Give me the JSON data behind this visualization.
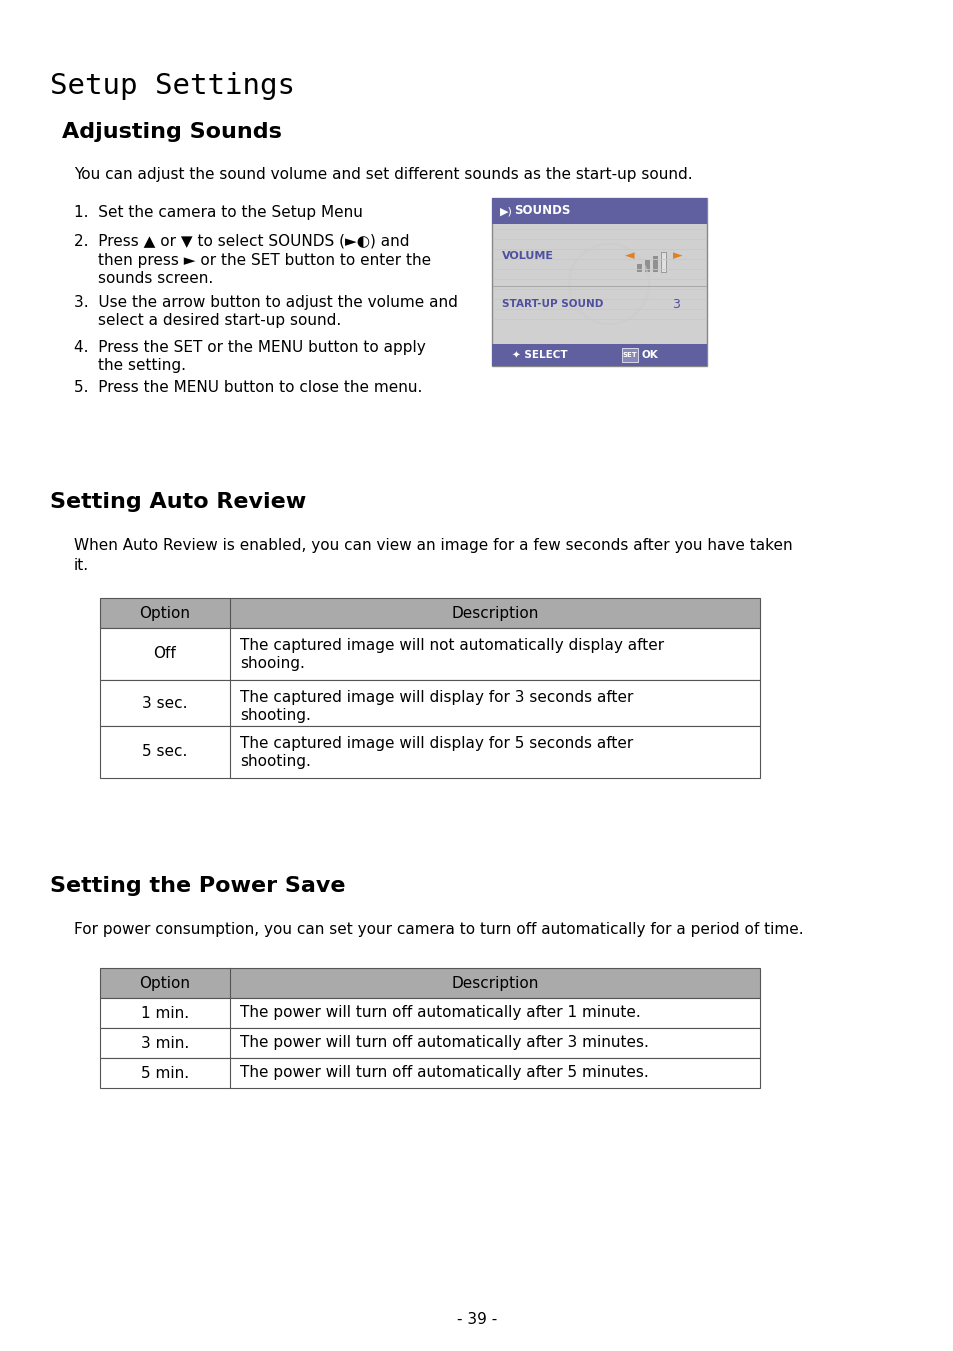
{
  "page_title": "Setup Settings",
  "section1_title": "Adjusting Sounds",
  "section1_intro": "You can adjust the sound volume and set different sounds as the start-up sound.",
  "section1_steps": [
    [
      "Set the camera to the Setup Menu"
    ],
    [
      "Press ▲ or ▼ to select SOUNDS (►◐) and",
      "then press ► or the SET button to enter the",
      "sounds screen."
    ],
    [
      "Use the arrow button to adjust the volume and",
      "select a desired start-up sound."
    ],
    [
      "Press the SET or the MENU button to apply",
      "the setting."
    ],
    [
      "Press the MENU button to close the menu."
    ]
  ],
  "section2_title": "Setting Auto Review",
  "section2_intro_line1": "When Auto Review is enabled, you can view an image for a few seconds after you have taken",
  "section2_intro_line2": "it.",
  "table1_headers": [
    "Option",
    "Description"
  ],
  "table1_rows": [
    [
      "Off",
      "The captured image will not automatically display after",
      "shooing."
    ],
    [
      "3 sec.",
      "The captured image will display for 3 seconds after",
      "shooting."
    ],
    [
      "5 sec.",
      "The captured image will display for 5 seconds after",
      "shooting."
    ]
  ],
  "section3_title": "Setting the Power Save",
  "section3_intro": "For power consumption, you can set your camera to turn off automatically for a period of time.",
  "table2_headers": [
    "Option",
    "Description"
  ],
  "table2_rows": [
    [
      "1 min.",
      "The power will turn off automatically after 1 minute."
    ],
    [
      "3 min.",
      "The power will turn off automatically after 3 minutes."
    ],
    [
      "5 min.",
      "The power will turn off automatically after 5 minutes."
    ]
  ],
  "page_number": "- 39 -",
  "bg_color": "#ffffff",
  "text_color": "#000000",
  "table_header_bg": "#aaaaaa",
  "screen_bg": "#d0d0d0",
  "screen_header_bg": "#6060a0",
  "screen_bottom_bg": "#6060a0",
  "screen_line_color": "#b0b0b0",
  "screen_text_color": "#5050a0",
  "orange_color": "#e08020",
  "bar_filled_color": "#909090",
  "bar_empty_color": "#e0e0e0"
}
